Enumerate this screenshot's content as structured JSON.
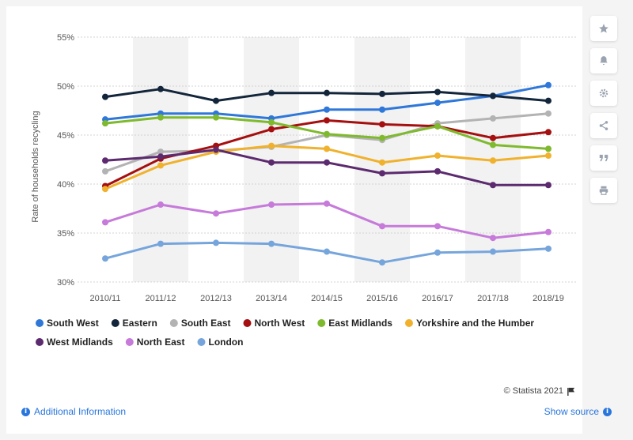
{
  "chart_data": {
    "type": "line",
    "ylabel": "Rate of households recycling",
    "ylim": [
      30,
      55
    ],
    "y_ticks": [
      "30%",
      "35%",
      "40%",
      "45%",
      "50%",
      "55%"
    ],
    "categories": [
      "2010/11",
      "2011/12",
      "2012/13",
      "2013/14",
      "2014/15",
      "2015/16",
      "2016/17",
      "2017/18",
      "2018/19"
    ],
    "grid": true,
    "legend_position": "bottom",
    "series": [
      {
        "name": "South West",
        "color": "#2f78d9",
        "values": [
          46.6,
          47.2,
          47.2,
          46.7,
          47.6,
          47.6,
          48.3,
          49.0,
          50.1
        ]
      },
      {
        "name": "Eastern",
        "color": "#13253a",
        "values": [
          48.9,
          49.7,
          48.5,
          49.3,
          49.3,
          49.2,
          49.4,
          49.0,
          48.5
        ]
      },
      {
        "name": "South East",
        "color": "#b3b3b3",
        "values": [
          41.3,
          43.3,
          43.4,
          43.8,
          45.0,
          44.5,
          46.2,
          46.7,
          47.2
        ]
      },
      {
        "name": "North West",
        "color": "#a50f0f",
        "values": [
          39.8,
          42.6,
          43.9,
          45.6,
          46.5,
          46.1,
          45.9,
          44.7,
          45.3
        ]
      },
      {
        "name": "East Midlands",
        "color": "#7fba2e",
        "values": [
          46.2,
          46.8,
          46.8,
          46.3,
          45.1,
          44.7,
          45.9,
          44.0,
          43.6
        ]
      },
      {
        "name": "Yorkshire and the Humber",
        "color": "#f0b12d",
        "values": [
          39.5,
          41.9,
          43.3,
          43.9,
          43.6,
          42.2,
          42.9,
          42.4,
          42.9
        ]
      },
      {
        "name": "West Midlands",
        "color": "#5c2a6e",
        "values": [
          42.4,
          42.8,
          43.5,
          42.2,
          42.2,
          41.1,
          41.3,
          39.9,
          39.9
        ]
      },
      {
        "name": "North East",
        "color": "#c67ad9",
        "values": [
          36.1,
          37.9,
          37.0,
          37.9,
          38.0,
          35.7,
          35.7,
          34.5,
          35.1
        ]
      },
      {
        "name": "London",
        "color": "#76a5dc",
        "values": [
          32.4,
          33.9,
          34.0,
          33.9,
          33.1,
          32.0,
          33.0,
          33.1,
          33.4
        ]
      }
    ]
  },
  "footer": {
    "credit": "© Statista 2021",
    "additional_info": "Additional Information",
    "show_source": "Show source"
  },
  "tools": [
    {
      "icon": "star-icon"
    },
    {
      "icon": "bell-icon"
    },
    {
      "icon": "gear-icon"
    },
    {
      "icon": "share-icon"
    },
    {
      "icon": "quote-icon"
    },
    {
      "icon": "print-icon"
    }
  ]
}
